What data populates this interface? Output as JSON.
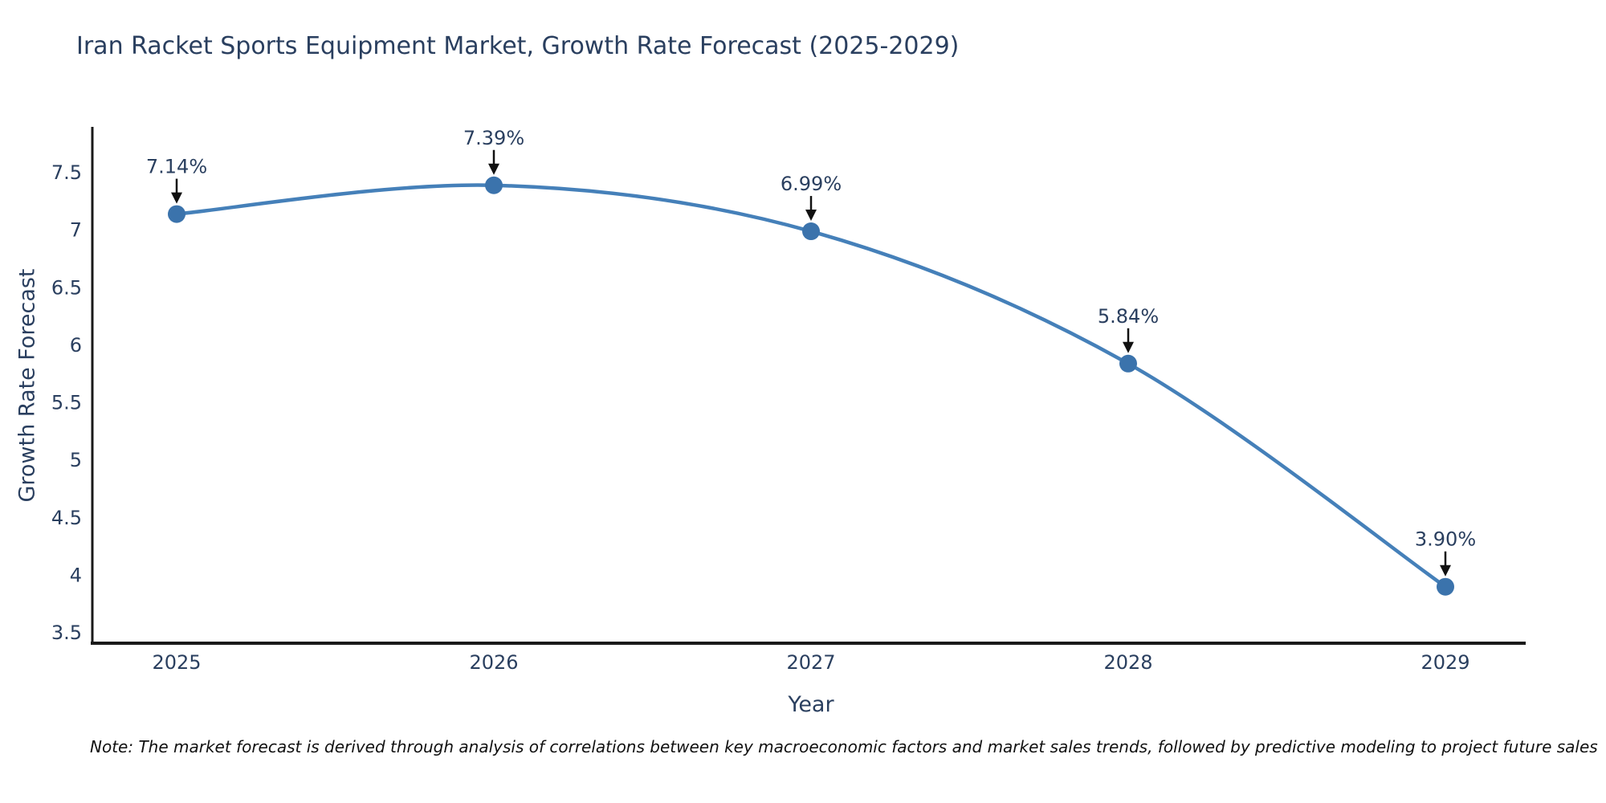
{
  "title": "Iran Racket Sports Equipment Market, Growth Rate Forecast (2025-2029)",
  "note": "Note: The market forecast is derived through analysis of correlations between key macroeconomic factors and market sales trends, followed by predictive modeling to project future sales",
  "chart_data": {
    "type": "line",
    "title": "Iran Racket Sports Equipment Market, Growth Rate Forecast (2025-2029)",
    "xlabel": "Year",
    "ylabel": "Growth Rate Forecast",
    "x": [
      2025,
      2026,
      2027,
      2028,
      2029
    ],
    "values": [
      7.14,
      7.39,
      6.99,
      5.84,
      3.9
    ],
    "point_labels": [
      "7.14%",
      "7.39%",
      "6.99%",
      "5.84%",
      "3.90%"
    ],
    "ylim": [
      3.5,
      7.5
    ],
    "ytick_step": 0.5,
    "yticks": [
      3.5,
      4,
      4.5,
      5,
      5.5,
      6,
      6.5,
      7,
      7.5
    ],
    "grid": false,
    "legend_position": "none",
    "colors": {
      "line": "#4580b9",
      "marker": "#3b73ac",
      "axis": "#1a1a1a",
      "text": "#2a3f5f",
      "annotation_arrow": "#111111"
    }
  }
}
